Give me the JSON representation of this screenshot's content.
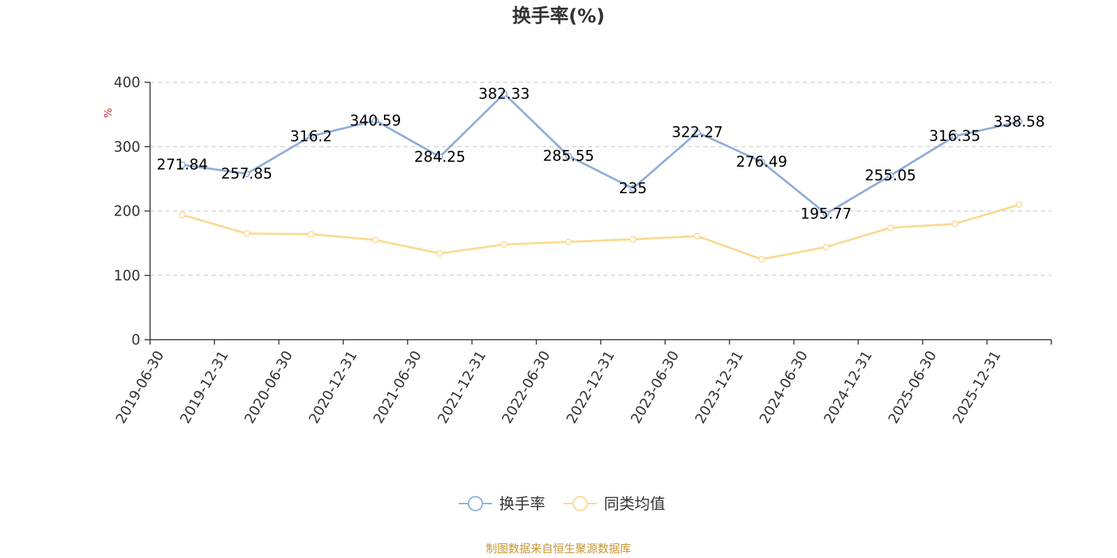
{
  "chart_data": {
    "type": "line",
    "title": "换手率(%)",
    "ylabel": "%",
    "xlabel": "",
    "ylim": [
      0,
      400
    ],
    "yticks": [
      0,
      100,
      200,
      300,
      400
    ],
    "grid": true,
    "categories": [
      "2019-06-30",
      "2019-12-31",
      "2020-06-30",
      "2020-12-31",
      "2021-06-30",
      "2021-12-31",
      "2022-06-30",
      "2022-12-31",
      "2023-06-30",
      "2023-12-31",
      "2024-06-30",
      "2024-12-31",
      "2025-06-30",
      "2025-12-31"
    ],
    "series": [
      {
        "name": "换手率",
        "color": "#8eadd9",
        "show_labels": true,
        "values": [
          271.84,
          257.85,
          316.2,
          340.59,
          284.25,
          382.33,
          285.55,
          235,
          322.27,
          276.49,
          195.77,
          255.05,
          316.35,
          338.58
        ]
      },
      {
        "name": "同类均值",
        "color": "#fbd98f",
        "show_labels": false,
        "values": [
          194,
          165,
          164,
          155,
          134,
          148,
          152,
          156,
          161,
          125,
          144,
          174,
          180,
          210
        ]
      }
    ],
    "legend_position": "bottom-center"
  },
  "unit_color": "#e0262a",
  "source_text": "制图数据来自恒生聚源数据库",
  "source_color": "#c8962e"
}
